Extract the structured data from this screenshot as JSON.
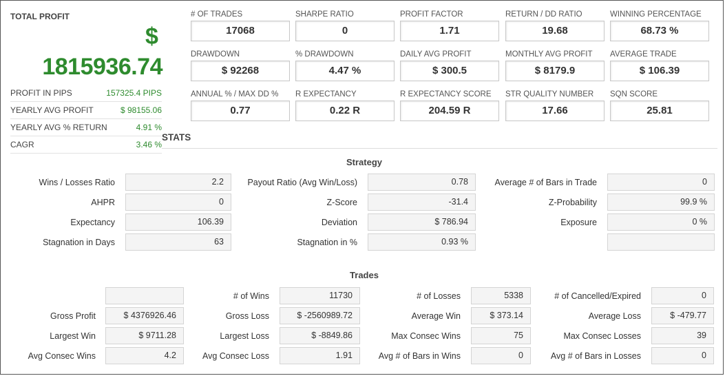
{
  "summary": {
    "title": "TOTAL PROFIT",
    "currency": "$",
    "total_profit": "1815936.74",
    "rows": [
      {
        "label": "PROFIT IN PIPS",
        "value": "157325.4 PIPS"
      },
      {
        "label": "YEARLY AVG PROFIT",
        "value": "$ 98155.06"
      },
      {
        "label": "YEARLY AVG % RETURN",
        "value": "4.91 %"
      },
      {
        "label": "CAGR",
        "value": "3.46 %"
      }
    ]
  },
  "metrics": [
    {
      "label": "# OF TRADES",
      "value": "17068"
    },
    {
      "label": "SHARPE RATIO",
      "value": "0"
    },
    {
      "label": "PROFIT FACTOR",
      "value": "1.71"
    },
    {
      "label": "RETURN / DD RATIO",
      "value": "19.68"
    },
    {
      "label": "WINNING PERCENTAGE",
      "value": "68.73 %"
    },
    {
      "label": "DRAWDOWN",
      "value": "$ 92268"
    },
    {
      "label": "% DRAWDOWN",
      "value": "4.47 %"
    },
    {
      "label": "DAILY AVG PROFIT",
      "value": "$ 300.5"
    },
    {
      "label": "MONTHLY AVG PROFIT",
      "value": "$ 8179.9"
    },
    {
      "label": "AVERAGE TRADE",
      "value": "$ 106.39"
    },
    {
      "label": "ANNUAL % / MAX DD %",
      "value": "0.77"
    },
    {
      "label": "R EXPECTANCY",
      "value": "0.22 R"
    },
    {
      "label": "R EXPECTANCY SCORE",
      "value": "204.59 R"
    },
    {
      "label": "STR QUALITY NUMBER",
      "value": "17.66"
    },
    {
      "label": "SQN SCORE",
      "value": "25.81"
    }
  ],
  "stats_title": "STATS",
  "strategy": {
    "title": "Strategy",
    "rows": [
      [
        {
          "label": "Wins / Losses Ratio",
          "value": "2.2"
        },
        {
          "label": "Payout Ratio (Avg Win/Loss)",
          "value": "0.78"
        },
        {
          "label": "Average # of Bars in Trade",
          "value": "0"
        }
      ],
      [
        {
          "label": "AHPR",
          "value": "0"
        },
        {
          "label": "Z-Score",
          "value": "-31.4"
        },
        {
          "label": "Z-Probability",
          "value": "99.9 %"
        }
      ],
      [
        {
          "label": "Expectancy",
          "value": "106.39"
        },
        {
          "label": "Deviation",
          "value": "$ 786.94"
        },
        {
          "label": "Exposure",
          "value": "0 %"
        }
      ],
      [
        {
          "label": "Stagnation in Days",
          "value": "63"
        },
        {
          "label": "Stagnation in %",
          "value": "0.93 %"
        },
        {
          "label": "",
          "value": ""
        }
      ]
    ]
  },
  "trades": {
    "title": "Trades",
    "rows": [
      [
        {
          "label": "",
          "value": ""
        },
        {
          "label": "# of Wins",
          "value": "11730"
        },
        {
          "label": "# of Losses",
          "value": "5338"
        },
        {
          "label": "# of Cancelled/Expired",
          "value": "0"
        }
      ],
      [
        {
          "label": "Gross Profit",
          "value": "$ 4376926.46"
        },
        {
          "label": "Gross Loss",
          "value": "$ -2560989.72"
        },
        {
          "label": "Average Win",
          "value": "$ 373.14"
        },
        {
          "label": "Average Loss",
          "value": "$ -479.77"
        }
      ],
      [
        {
          "label": "Largest Win",
          "value": "$ 9711.28"
        },
        {
          "label": "Largest Loss",
          "value": "$ -8849.86"
        },
        {
          "label": "Max Consec Wins",
          "value": "75"
        },
        {
          "label": "Max Consec Losses",
          "value": "39"
        }
      ],
      [
        {
          "label": "Avg Consec Wins",
          "value": "4.2"
        },
        {
          "label": "Avg Consec Loss",
          "value": "1.91"
        },
        {
          "label": "Avg # of Bars in Wins",
          "value": "0"
        },
        {
          "label": "Avg # of Bars in Losses",
          "value": "0"
        }
      ]
    ]
  }
}
